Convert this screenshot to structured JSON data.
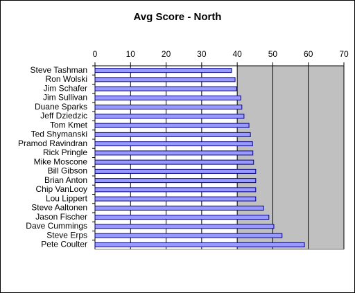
{
  "chart_data": {
    "type": "hbar",
    "title": "Avg Score - North",
    "categories": [
      "Steve Tashman",
      "Ron Wolski",
      "Jim Schafer",
      "Jim Sullivan",
      "Duane Sparks",
      "Jeff Dziedzic",
      "Tom Kmet",
      "Ted Shymanski",
      "Pramod Ravindran",
      "Rick Pringle",
      "Mike Moscone",
      "Bill Gibson",
      "Brian Anton",
      "Chip VanLooy",
      "Lou Lippert",
      "Steve Aaltonen",
      "Jason Fischer",
      "Dave Cummings",
      "Steve Erps",
      "Pete Coulter"
    ],
    "values": [
      38.4,
      39.4,
      39.8,
      41,
      41.3,
      41.9,
      43.3,
      43.7,
      44.3,
      44.4,
      44.6,
      45.2,
      45.2,
      45.2,
      45.2,
      47.4,
      48.9,
      50.3,
      52.6,
      58.9
    ],
    "color": "#9999ff",
    "edge_color": "#000080",
    "xlim": [
      0,
      70
    ],
    "xticks": [
      0,
      10,
      20,
      30,
      40,
      50,
      60,
      70
    ],
    "grid": true
  }
}
